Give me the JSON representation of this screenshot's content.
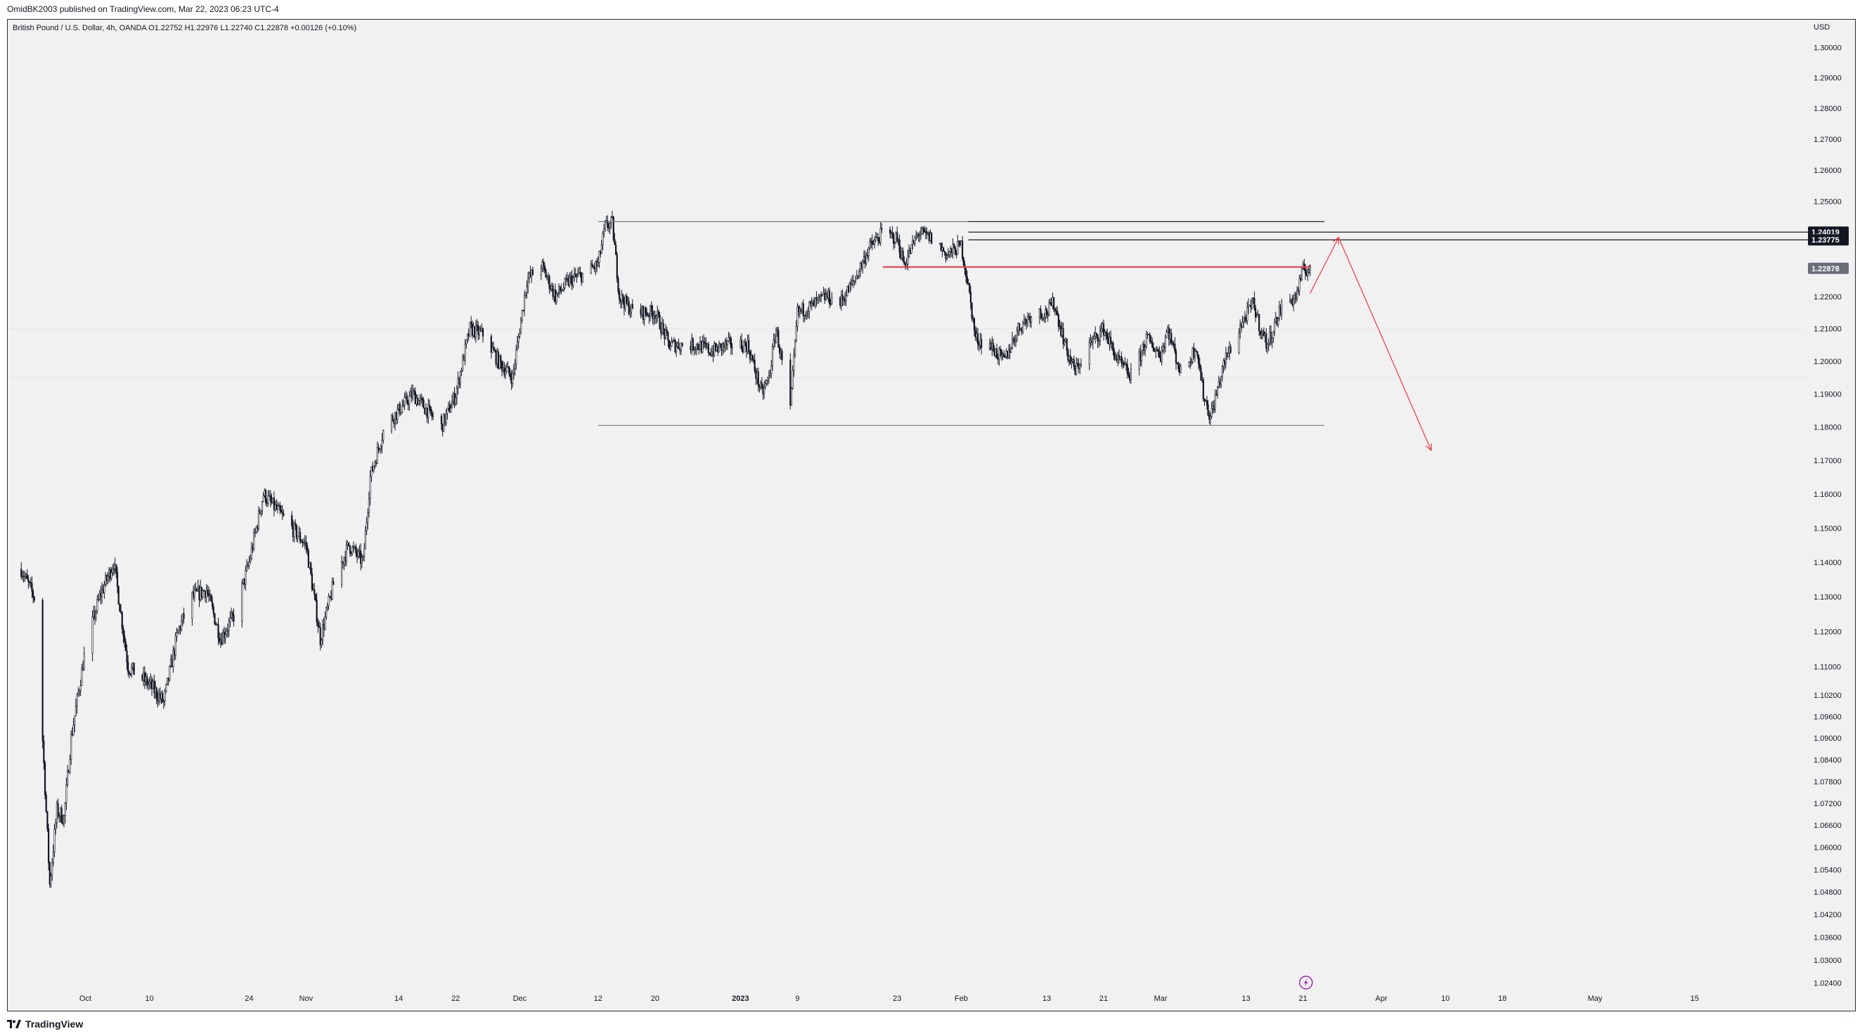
{
  "header": {
    "publisher_text": "OmidBK2003 published on TradingView.com, Mar 22, 2023 06:23 UTC-4",
    "symbol_line": "British Pound / U.S. Dollar, 4h, OANDA  O1.22752  H1.22976  L1.22740  C1.22878  +0.00126 (+0.10%)"
  },
  "footer": {
    "brand": "TradingView"
  },
  "chart_data": {
    "type": "candlestick",
    "title": "British Pound / U.S. Dollar, 4h, OANDA",
    "currency_label": "USD",
    "ohlc": {
      "open": "1.22752",
      "high": "1.22976",
      "low": "1.22740",
      "close": "1.22878",
      "change": "+0.00126 (+0.10%)"
    },
    "y_ticks": [
      "1.30000",
      "1.29000",
      "1.28000",
      "1.27000",
      "1.26000",
      "1.25000",
      "1.22000",
      "1.21000",
      "1.20000",
      "1.19000",
      "1.18000",
      "1.17000",
      "1.16000",
      "1.15000",
      "1.14000",
      "1.13000",
      "1.12000",
      "1.11000",
      "1.10200",
      "1.09600",
      "1.09000",
      "1.08400",
      "1.07800",
      "1.07200",
      "1.06600",
      "1.06000",
      "1.05400",
      "1.04800",
      "1.04200",
      "1.03600",
      "1.03000",
      "1.02400"
    ],
    "x_ticks": [
      {
        "label": "Oct",
        "date": "2022-10-01",
        "bold": false
      },
      {
        "label": "10",
        "date": "2022-10-10",
        "bold": false
      },
      {
        "label": "24",
        "date": "2022-10-24",
        "bold": false
      },
      {
        "label": "Nov",
        "date": "2022-11-01",
        "bold": false
      },
      {
        "label": "14",
        "date": "2022-11-14",
        "bold": false
      },
      {
        "label": "22",
        "date": "2022-11-22",
        "bold": false
      },
      {
        "label": "Dec",
        "date": "2022-12-01",
        "bold": false
      },
      {
        "label": "12",
        "date": "2022-12-12",
        "bold": false
      },
      {
        "label": "20",
        "date": "2022-12-20",
        "bold": false
      },
      {
        "label": "2023",
        "date": "2023-01-01",
        "bold": true
      },
      {
        "label": "9",
        "date": "2023-01-09",
        "bold": false
      },
      {
        "label": "23",
        "date": "2023-01-23",
        "bold": false
      },
      {
        "label": "Feb",
        "date": "2023-02-01",
        "bold": false
      },
      {
        "label": "13",
        "date": "2023-02-13",
        "bold": false
      },
      {
        "label": "21",
        "date": "2023-02-21",
        "bold": false
      },
      {
        "label": "Mar",
        "date": "2023-03-01",
        "bold": false
      },
      {
        "label": "13",
        "date": "2023-03-13",
        "bold": false
      },
      {
        "label": "21",
        "date": "2023-03-21",
        "bold": false
      },
      {
        "label": "Apr",
        "date": "2023-04-01",
        "bold": false
      },
      {
        "label": "10",
        "date": "2023-04-10",
        "bold": false
      },
      {
        "label": "18",
        "date": "2023-04-18",
        "bold": false
      },
      {
        "label": "May",
        "date": "2023-05-01",
        "bold": false
      },
      {
        "label": "15",
        "date": "2023-05-15",
        "bold": false
      }
    ],
    "price_labels": [
      {
        "text": "1.24019",
        "value": 1.24019,
        "color": "#131722"
      },
      {
        "text": "1.23775",
        "value": 1.23775,
        "color": "#131722"
      },
      {
        "text": "1.22878",
        "value": 1.22878,
        "color": "#6a6d78"
      }
    ],
    "close_path": [
      [
        "2022-09-22",
        1.138
      ],
      [
        "2022-09-24",
        1.129
      ],
      [
        "2022-09-26",
        1.05
      ],
      [
        "2022-09-27",
        1.07
      ],
      [
        "2022-09-28",
        1.068
      ],
      [
        "2022-09-29",
        1.09
      ],
      [
        "2022-10-01",
        1.115
      ],
      [
        "2022-10-03",
        1.13
      ],
      [
        "2022-10-05",
        1.14
      ],
      [
        "2022-10-07",
        1.11
      ],
      [
        "2022-10-10",
        1.105
      ],
      [
        "2022-10-12",
        1.1
      ],
      [
        "2022-10-14",
        1.12
      ],
      [
        "2022-10-16",
        1.13
      ],
      [
        "2022-10-18",
        1.132
      ],
      [
        "2022-10-20",
        1.118
      ],
      [
        "2022-10-22",
        1.125
      ],
      [
        "2022-10-24",
        1.14
      ],
      [
        "2022-10-26",
        1.16
      ],
      [
        "2022-10-28",
        1.155
      ],
      [
        "2022-10-30",
        1.15
      ],
      [
        "2022-11-01",
        1.145
      ],
      [
        "2022-11-03",
        1.118
      ],
      [
        "2022-11-05",
        1.135
      ],
      [
        "2022-11-07",
        1.145
      ],
      [
        "2022-11-09",
        1.14
      ],
      [
        "2022-11-10",
        1.165
      ],
      [
        "2022-11-12",
        1.18
      ],
      [
        "2022-11-14",
        1.185
      ],
      [
        "2022-11-16",
        1.19
      ],
      [
        "2022-11-18",
        1.185
      ],
      [
        "2022-11-20",
        1.18
      ],
      [
        "2022-11-22",
        1.19
      ],
      [
        "2022-11-24",
        1.21
      ],
      [
        "2022-11-26",
        1.208
      ],
      [
        "2022-11-28",
        1.2
      ],
      [
        "2022-11-30",
        1.195
      ],
      [
        "2022-12-02",
        1.225
      ],
      [
        "2022-12-04",
        1.23
      ],
      [
        "2022-12-06",
        1.22
      ],
      [
        "2022-12-08",
        1.225
      ],
      [
        "2022-12-10",
        1.227
      ],
      [
        "2022-12-12",
        1.23
      ],
      [
        "2022-12-13",
        1.242
      ],
      [
        "2022-12-14",
        1.243
      ],
      [
        "2022-12-15",
        1.22
      ],
      [
        "2022-12-17",
        1.215
      ],
      [
        "2022-12-20",
        1.215
      ],
      [
        "2022-12-22",
        1.205
      ],
      [
        "2022-12-24",
        1.205
      ],
      [
        "2022-12-26",
        1.205
      ],
      [
        "2022-12-28",
        1.203
      ],
      [
        "2022-12-30",
        1.205
      ],
      [
        "2023-01-02",
        1.205
      ],
      [
        "2023-01-04",
        1.19
      ],
      [
        "2023-01-05",
        1.195
      ],
      [
        "2023-01-06",
        1.21
      ],
      [
        "2023-01-08",
        1.185
      ],
      [
        "2023-01-09",
        1.215
      ],
      [
        "2023-01-11",
        1.217
      ],
      [
        "2023-01-13",
        1.22
      ],
      [
        "2023-01-15",
        1.218
      ],
      [
        "2023-01-17",
        1.225
      ],
      [
        "2023-01-19",
        1.235
      ],
      [
        "2023-01-21",
        1.24
      ],
      [
        "2023-01-23",
        1.238
      ],
      [
        "2023-01-24",
        1.23
      ],
      [
        "2023-01-26",
        1.24
      ],
      [
        "2023-01-28",
        1.238
      ],
      [
        "2023-01-30",
        1.233
      ],
      [
        "2023-02-01",
        1.236
      ],
      [
        "2023-02-02",
        1.223
      ],
      [
        "2023-02-03",
        1.207
      ],
      [
        "2023-02-05",
        1.205
      ],
      [
        "2023-02-07",
        1.2
      ],
      [
        "2023-02-09",
        1.21
      ],
      [
        "2023-02-11",
        1.215
      ],
      [
        "2023-02-13",
        1.215
      ],
      [
        "2023-02-14",
        1.218
      ],
      [
        "2023-02-16",
        1.202
      ],
      [
        "2023-02-17",
        1.197
      ],
      [
        "2023-02-19",
        1.205
      ],
      [
        "2023-02-21",
        1.21
      ],
      [
        "2023-02-23",
        1.2
      ],
      [
        "2023-02-25",
        1.195
      ],
      [
        "2023-02-27",
        1.207
      ],
      [
        "2023-03-01",
        1.202
      ],
      [
        "2023-03-02",
        1.21
      ],
      [
        "2023-03-04",
        1.195
      ],
      [
        "2023-03-06",
        1.205
      ],
      [
        "2023-03-07",
        1.19
      ],
      [
        "2023-03-08",
        1.183
      ],
      [
        "2023-03-10",
        1.2
      ],
      [
        "2023-03-12",
        1.21
      ],
      [
        "2023-03-14",
        1.218
      ],
      [
        "2023-03-15",
        1.21
      ],
      [
        "2023-03-16",
        1.205
      ],
      [
        "2023-03-18",
        1.217
      ],
      [
        "2023-03-20",
        1.22
      ],
      [
        "2023-03-21",
        1.228
      ],
      [
        "2023-03-22",
        1.2288
      ]
    ],
    "drawings": [
      {
        "type": "hline",
        "color": "#787b86",
        "from": "2022-12-12",
        "to": "2023-03-24",
        "value": 1.2435
      },
      {
        "type": "hline",
        "color": "#787b86",
        "from": "2022-12-12",
        "to": "2023-03-24",
        "value": 1.1805
      },
      {
        "type": "hline",
        "color": "#131722",
        "from": "2023-02-02",
        "to": "2023-05-31",
        "value": 1.24019
      },
      {
        "type": "hline",
        "color": "#131722",
        "from": "2023-02-02",
        "to": "2023-05-31",
        "value": 1.23775
      },
      {
        "type": "hline",
        "color": "#2a2e39",
        "from": "2023-02-02",
        "to": "2023-03-24",
        "value": 1.2435
      },
      {
        "type": "hline",
        "color": "#f23645",
        "from": "2023-01-21",
        "to": "2023-03-22",
        "value": 1.2292
      },
      {
        "type": "arrow",
        "color": "#f23645",
        "from_date": "2023-03-22",
        "from_value": 1.221,
        "to_date": "2023-03-26",
        "to_value": 1.2385
      },
      {
        "type": "arrow",
        "color": "#f23645",
        "from_date": "2023-03-26",
        "from_value": 1.2385,
        "to_date": "2023-04-08",
        "to_value": 1.173
      }
    ]
  }
}
